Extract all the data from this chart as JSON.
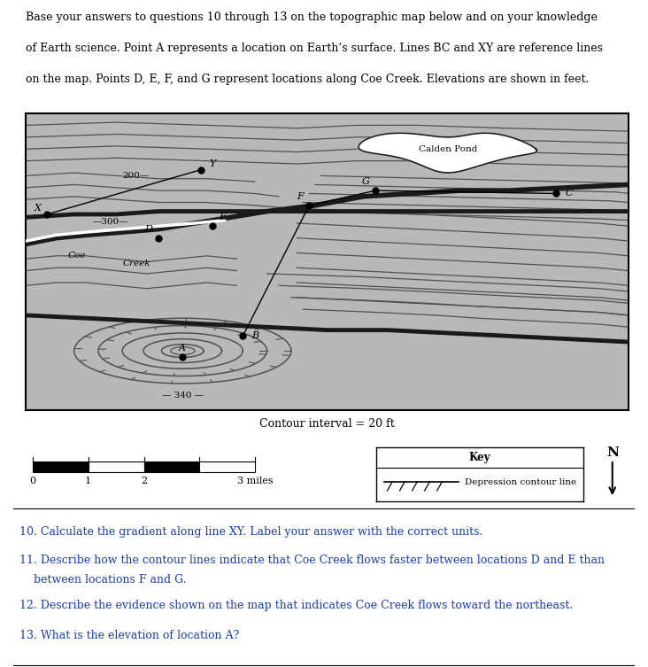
{
  "bg_color": "#ffffff",
  "map_bg": "#b8b8b8",
  "contour_color": "#505050",
  "thick_contour": "#1a1a1a",
  "contour_interval_text": "Contour interval = 20 ft",
  "key_title": "Key",
  "key_depression": "Depression contour line",
  "pond_label": "Calden Pond",
  "coe_label": "Coe",
  "creek_label": "Creek",
  "label_200": "200—",
  "label_300": "—300—",
  "label_340": "— 340 —",
  "label_Y": "Y",
  "label_X": "X",
  "label_B": "B",
  "label_C": "C",
  "label_D": "D",
  "label_E": "E",
  "label_F": "F",
  "label_G": "G",
  "label_A": "A",
  "title_line1": "Base your answers to questions 10 through 13 on the topographic map below and on your knowledge",
  "title_line2": "of Earth science. Point A represents a location on Earth’s surface. Lines BC and XY are reference lines",
  "title_line3": "on the map. Points D, E, F, and G represent locations along Coe Creek. Elevations are shown in feet.",
  "q1": "10. Calculate the gradient along line XY. Label your answer with the correct units.",
  "q2a": "11. Describe how the contour lines indicate that Coe Creek flows faster between locations D and E than",
  "q2b": "    between locations F and G.",
  "q3": "12. Describe the evidence shown on the map that indicates Coe Creek flows toward the northeast.",
  "q4": "13. What is the elevation of location A?"
}
